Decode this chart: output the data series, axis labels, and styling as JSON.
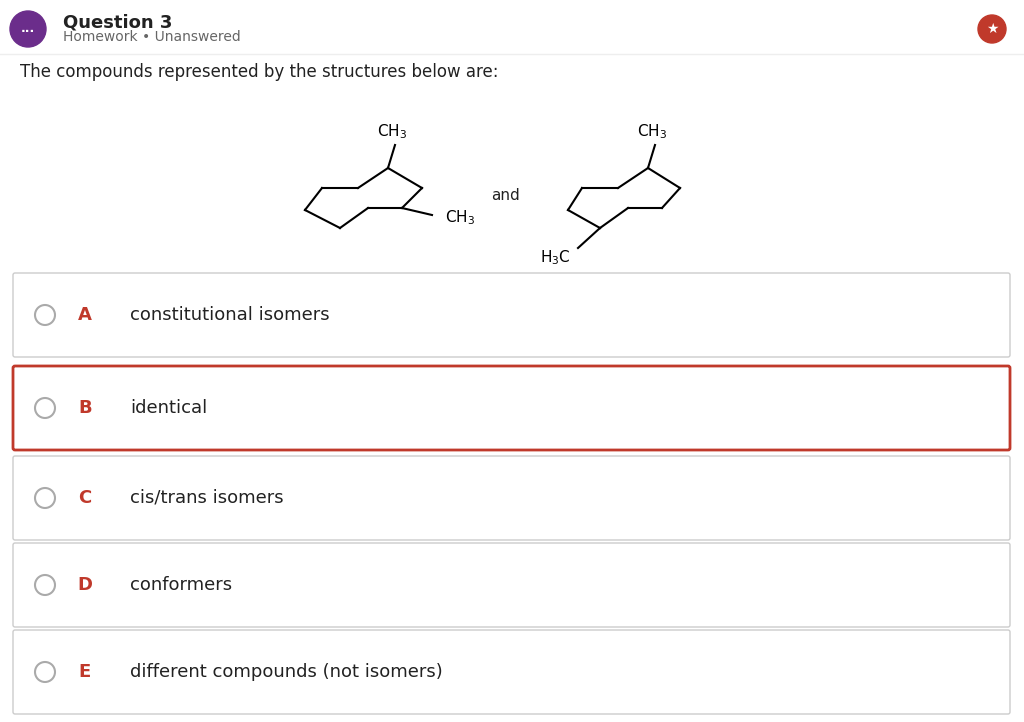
{
  "title": "Question 3",
  "subtitle": "Homework • Unanswered",
  "question_text": "The compounds represented by the structures below are:",
  "bg_color": "#ffffff",
  "header_bg": "#ffffff",
  "icon_color": "#6b2d8b",
  "options": [
    {
      "letter": "A",
      "text": "constitutional isomers",
      "highlighted": false
    },
    {
      "letter": "B",
      "text": "identical",
      "highlighted": true
    },
    {
      "letter": "C",
      "text": "cis/trans isomers",
      "highlighted": false
    },
    {
      "letter": "D",
      "text": "conformers",
      "highlighted": false
    },
    {
      "letter": "E",
      "text": "different compounds (not isomers)",
      "highlighted": false
    }
  ],
  "highlight_border_color": "#c0392b",
  "normal_border_color": "#cccccc",
  "letter_color": "#c0392b",
  "text_color": "#222222",
  "option_bg": "#ffffff",
  "title_color": "#222222",
  "subtitle_color": "#666666",
  "and_text": "and"
}
